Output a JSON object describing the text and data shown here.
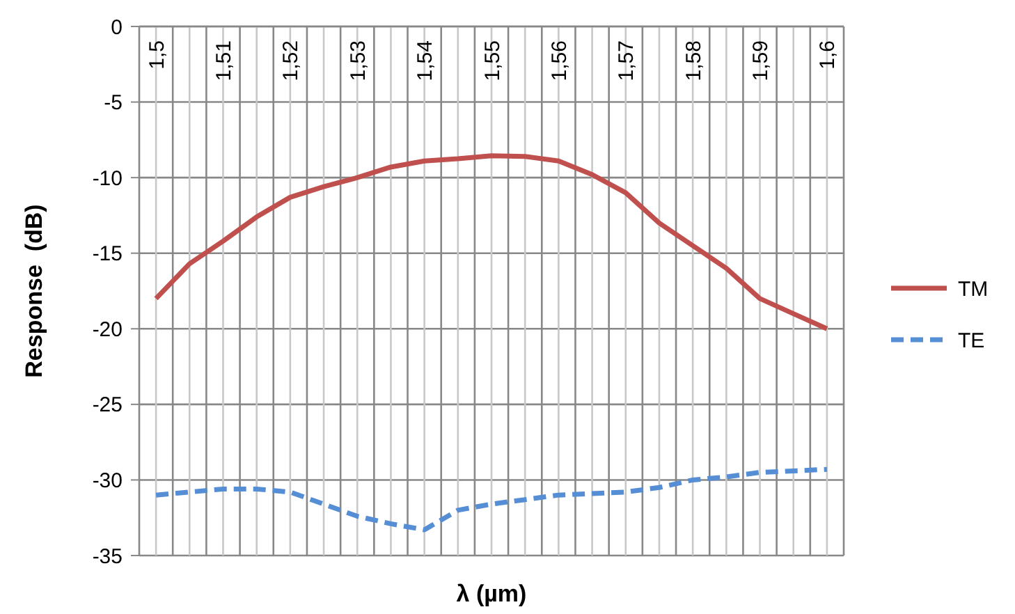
{
  "chart_data": {
    "type": "line",
    "xlabel": "λ (µm)",
    "ylabel": "Response  (dB)",
    "x": [
      1.5,
      1.505,
      1.51,
      1.515,
      1.52,
      1.525,
      1.53,
      1.535,
      1.54,
      1.545,
      1.55,
      1.555,
      1.56,
      1.565,
      1.57,
      1.575,
      1.58,
      1.585,
      1.59,
      1.595,
      1.6
    ],
    "series": [
      {
        "name": "TM",
        "color": "#c0504d",
        "line_style": "solid",
        "values": [
          -18,
          -15.7,
          -14.2,
          -12.6,
          -11.3,
          -10.6,
          -10,
          -9.3,
          -8.9,
          -8.75,
          -8.55,
          -8.6,
          -8.9,
          -9.8,
          -11,
          -13,
          -14.5,
          -16,
          -18,
          -19,
          -20
        ]
      },
      {
        "name": "TE",
        "color": "#558ed5",
        "line_style": "dashed",
        "values": [
          -31,
          -30.8,
          -30.6,
          -30.6,
          -30.8,
          -31.6,
          -32.4,
          -32.9,
          -33.3,
          -32,
          -31.6,
          -31.3,
          -31,
          -30.9,
          -30.8,
          -30.5,
          -30,
          -29.8,
          -29.5,
          -29.4,
          -29.3
        ]
      }
    ],
    "xlim": [
      1.4975,
      1.6025
    ],
    "xticks": [
      {
        "value": 1.5,
        "label": "1,5"
      },
      {
        "value": 1.505,
        "label": null
      },
      {
        "value": 1.51,
        "label": "1,51"
      },
      {
        "value": 1.515,
        "label": null
      },
      {
        "value": 1.52,
        "label": "1,52"
      },
      {
        "value": 1.525,
        "label": null
      },
      {
        "value": 1.53,
        "label": "1,53"
      },
      {
        "value": 1.535,
        "label": null
      },
      {
        "value": 1.54,
        "label": "1,54"
      },
      {
        "value": 1.545,
        "label": null
      },
      {
        "value": 1.55,
        "label": "1,55"
      },
      {
        "value": 1.555,
        "label": null
      },
      {
        "value": 1.56,
        "label": "1,56"
      },
      {
        "value": 1.565,
        "label": null
      },
      {
        "value": 1.57,
        "label": "1,57"
      },
      {
        "value": 1.575,
        "label": null
      },
      {
        "value": 1.58,
        "label": "1,58"
      },
      {
        "value": 1.585,
        "label": null
      },
      {
        "value": 1.59,
        "label": "1,59"
      },
      {
        "value": 1.595,
        "label": null
      },
      {
        "value": 1.6,
        "label": "1,6"
      }
    ],
    "ylim": [
      -35,
      0
    ],
    "yticks": [
      0,
      -5,
      -10,
      -15,
      -20,
      -25,
      -30,
      -35
    ],
    "grid": true,
    "legend": "right",
    "marker": "none"
  }
}
